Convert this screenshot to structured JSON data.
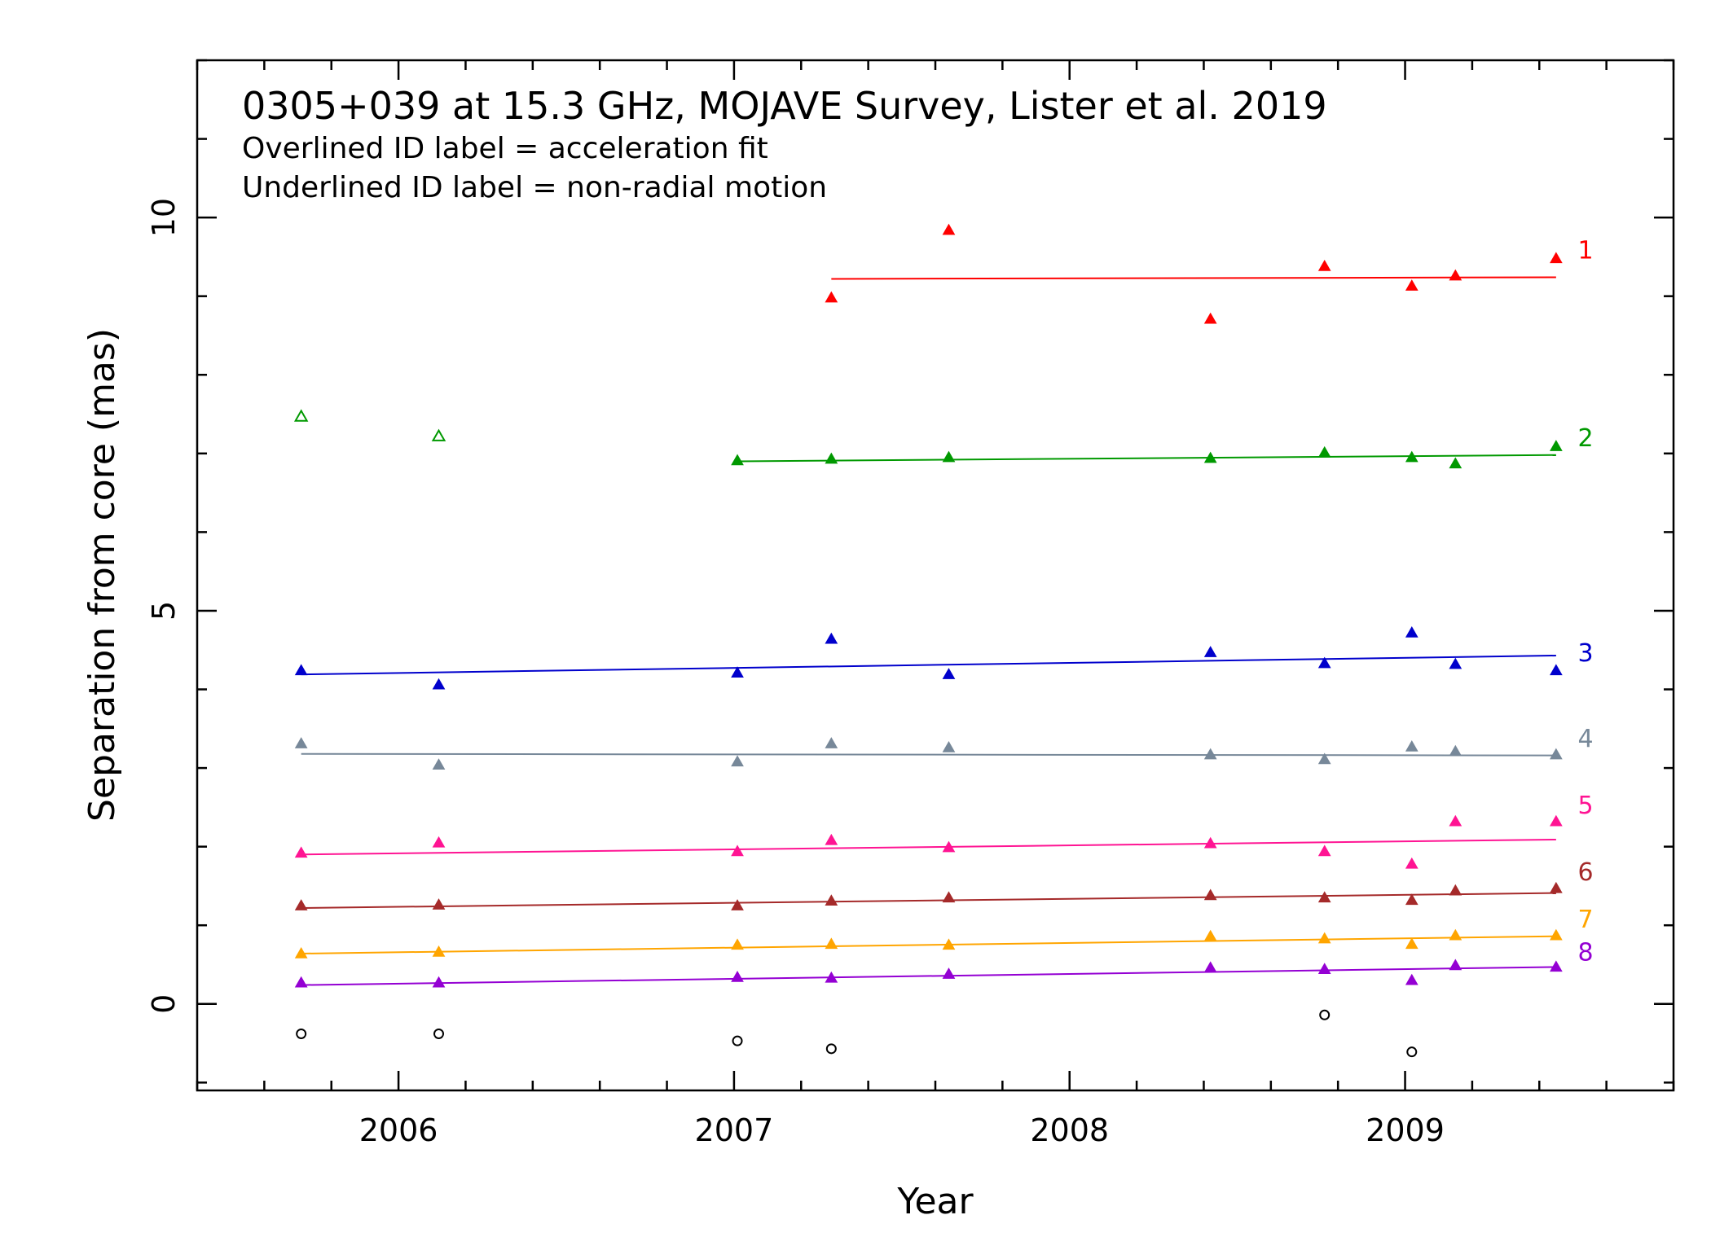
{
  "chart_data": {
    "type": "scatter",
    "title_lines": [
      "0305+039 at 15.3 GHz, MOJAVE Survey, Lister et al. 2019",
      "Overlined ID label = acceleration fit",
      "Underlined ID label = non-radial motion"
    ],
    "xlabel": "Year",
    "ylabel": "Separation from core (mas)",
    "xlim": [
      2005.4,
      2009.8
    ],
    "ylim": [
      -1.1,
      12.0
    ],
    "x_ticks": [
      2006,
      2007,
      2008,
      2009
    ],
    "y_ticks": [
      0,
      5,
      10
    ],
    "grid": false,
    "series": [
      {
        "name": "1",
        "color": "#ff0000",
        "marker": "filled-triangle",
        "points": [
          [
            2007.29,
            8.98
          ],
          [
            2007.64,
            9.84
          ],
          [
            2008.42,
            8.71
          ],
          [
            2008.76,
            9.38
          ],
          [
            2009.02,
            9.13
          ],
          [
            2009.15,
            9.26
          ],
          [
            2009.45,
            9.48
          ]
        ],
        "fit": {
          "x": [
            2007.29,
            2009.45
          ],
          "y": [
            9.22,
            9.24
          ]
        }
      },
      {
        "name": "2",
        "color": "#009900",
        "marker": "filled-triangle",
        "points": [
          [
            2007.01,
            6.91
          ],
          [
            2007.29,
            6.93
          ],
          [
            2007.64,
            6.95
          ],
          [
            2008.42,
            6.94
          ],
          [
            2008.76,
            7.01
          ],
          [
            2009.02,
            6.95
          ],
          [
            2009.15,
            6.87
          ],
          [
            2009.45,
            7.09
          ]
        ],
        "fit": {
          "x": [
            2007.01,
            2009.45
          ],
          "y": [
            6.9,
            6.98
          ]
        }
      },
      {
        "name": "2-open",
        "color": "#009900",
        "marker": "open-triangle",
        "points": [
          [
            2005.71,
            7.47
          ],
          [
            2006.12,
            7.22
          ]
        ]
      },
      {
        "name": "3",
        "color": "#0000cc",
        "marker": "filled-triangle",
        "points": [
          [
            2005.71,
            4.24
          ],
          [
            2006.12,
            4.06
          ],
          [
            2007.01,
            4.21
          ],
          [
            2007.29,
            4.64
          ],
          [
            2007.64,
            4.19
          ],
          [
            2008.42,
            4.47
          ],
          [
            2008.76,
            4.33
          ],
          [
            2009.02,
            4.72
          ],
          [
            2009.15,
            4.32
          ],
          [
            2009.45,
            4.24
          ]
        ],
        "fit": {
          "x": [
            2005.71,
            2009.45
          ],
          "y": [
            4.19,
            4.43
          ]
        }
      },
      {
        "name": "4",
        "color": "#778899",
        "marker": "filled-triangle",
        "points": [
          [
            2005.71,
            3.31
          ],
          [
            2006.12,
            3.04
          ],
          [
            2007.01,
            3.08
          ],
          [
            2007.29,
            3.31
          ],
          [
            2007.64,
            3.26
          ],
          [
            2008.42,
            3.17
          ],
          [
            2008.76,
            3.11
          ],
          [
            2009.02,
            3.27
          ],
          [
            2009.15,
            3.21
          ],
          [
            2009.45,
            3.17
          ]
        ],
        "fit": {
          "x": [
            2005.71,
            2009.45
          ],
          "y": [
            3.18,
            3.16
          ]
        }
      },
      {
        "name": "5",
        "color": "#ff1493",
        "marker": "filled-triangle",
        "points": [
          [
            2005.71,
            1.92
          ],
          [
            2006.12,
            2.05
          ],
          [
            2007.01,
            1.94
          ],
          [
            2007.29,
            2.08
          ],
          [
            2007.64,
            1.99
          ],
          [
            2008.42,
            2.04
          ],
          [
            2008.76,
            1.94
          ],
          [
            2009.02,
            1.78
          ],
          [
            2009.15,
            2.32
          ],
          [
            2009.45,
            2.32
          ]
        ],
        "fit": {
          "x": [
            2005.71,
            2009.45
          ],
          "y": [
            1.9,
            2.09
          ]
        }
      },
      {
        "name": "6",
        "color": "#a52a2a",
        "marker": "filled-triangle",
        "points": [
          [
            2005.71,
            1.25
          ],
          [
            2006.12,
            1.26
          ],
          [
            2007.01,
            1.25
          ],
          [
            2007.29,
            1.31
          ],
          [
            2007.64,
            1.35
          ],
          [
            2008.42,
            1.38
          ],
          [
            2008.76,
            1.35
          ],
          [
            2009.02,
            1.32
          ],
          [
            2009.15,
            1.44
          ],
          [
            2009.45,
            1.47
          ]
        ],
        "fit": {
          "x": [
            2005.71,
            2009.45
          ],
          "y": [
            1.22,
            1.41
          ]
        }
      },
      {
        "name": "7",
        "color": "#ffa500",
        "marker": "filled-triangle",
        "points": [
          [
            2005.71,
            0.64
          ],
          [
            2006.12,
            0.66
          ],
          [
            2007.01,
            0.75
          ],
          [
            2007.29,
            0.76
          ],
          [
            2007.64,
            0.75
          ],
          [
            2008.42,
            0.86
          ],
          [
            2008.76,
            0.83
          ],
          [
            2009.02,
            0.76
          ],
          [
            2009.15,
            0.87
          ],
          [
            2009.45,
            0.87
          ]
        ],
        "fit": {
          "x": [
            2005.71,
            2009.45
          ],
          "y": [
            0.64,
            0.86
          ]
        }
      },
      {
        "name": "8",
        "color": "#9400d3",
        "marker": "filled-triangle",
        "points": [
          [
            2005.71,
            0.27
          ],
          [
            2006.12,
            0.27
          ],
          [
            2007.01,
            0.34
          ],
          [
            2007.29,
            0.33
          ],
          [
            2007.64,
            0.38
          ],
          [
            2008.42,
            0.46
          ],
          [
            2008.76,
            0.44
          ],
          [
            2009.02,
            0.3
          ],
          [
            2009.15,
            0.49
          ],
          [
            2009.45,
            0.47
          ]
        ],
        "fit": {
          "x": [
            2005.71,
            2009.45
          ],
          "y": [
            0.24,
            0.47
          ]
        }
      },
      {
        "name": "core-open",
        "color": "#000000",
        "marker": "open-circle",
        "points": [
          [
            2005.71,
            -0.38
          ],
          [
            2006.12,
            -0.38
          ],
          [
            2007.01,
            -0.47
          ],
          [
            2007.29,
            -0.57
          ],
          [
            2008.76,
            -0.14
          ],
          [
            2009.02,
            -0.61
          ]
        ]
      }
    ],
    "series_labels": [
      {
        "text": "1",
        "y": 9.48,
        "color": "#ff0000"
      },
      {
        "text": "2",
        "y": 7.09,
        "color": "#009900"
      },
      {
        "text": "3",
        "y": 4.36,
        "color": "#0000cc"
      },
      {
        "text": "4",
        "y": 3.27,
        "color": "#778899"
      },
      {
        "text": "5",
        "y": 2.42,
        "color": "#ff1493"
      },
      {
        "text": "6",
        "y": 1.57,
        "color": "#a52a2a"
      },
      {
        "text": "7",
        "y": 0.97,
        "color": "#ffa500"
      },
      {
        "text": "8",
        "y": 0.55,
        "color": "#9400d3"
      }
    ]
  }
}
